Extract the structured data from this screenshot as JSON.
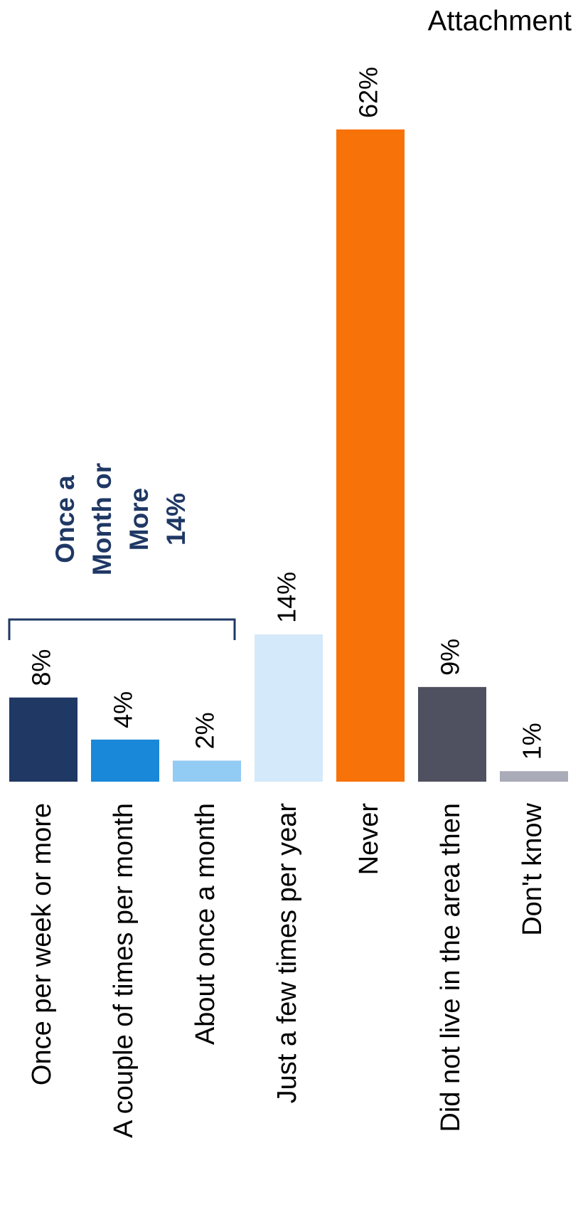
{
  "chart_data": {
    "type": "bar",
    "title": "Attachment",
    "categories": [
      "Once per week or more",
      "A couple of times per month",
      "About once a month",
      "Just a few times per year",
      "Never",
      "Did not live in the area then",
      "Don't know"
    ],
    "values": [
      8,
      4,
      2,
      14,
      62,
      9,
      1
    ],
    "value_labels": [
      "8%",
      "4%",
      "2%",
      "14%",
      "62%",
      "9%",
      "1%"
    ],
    "colors": [
      "#1f3864",
      "#1a88d8",
      "#92cbf3",
      "#d4e9f9",
      "#f77208",
      "#505160",
      "#a9abb8"
    ],
    "annotation": {
      "lines": [
        "Once a",
        "Month or",
        "More",
        "14%"
      ],
      "color": "#1f3864"
    }
  }
}
